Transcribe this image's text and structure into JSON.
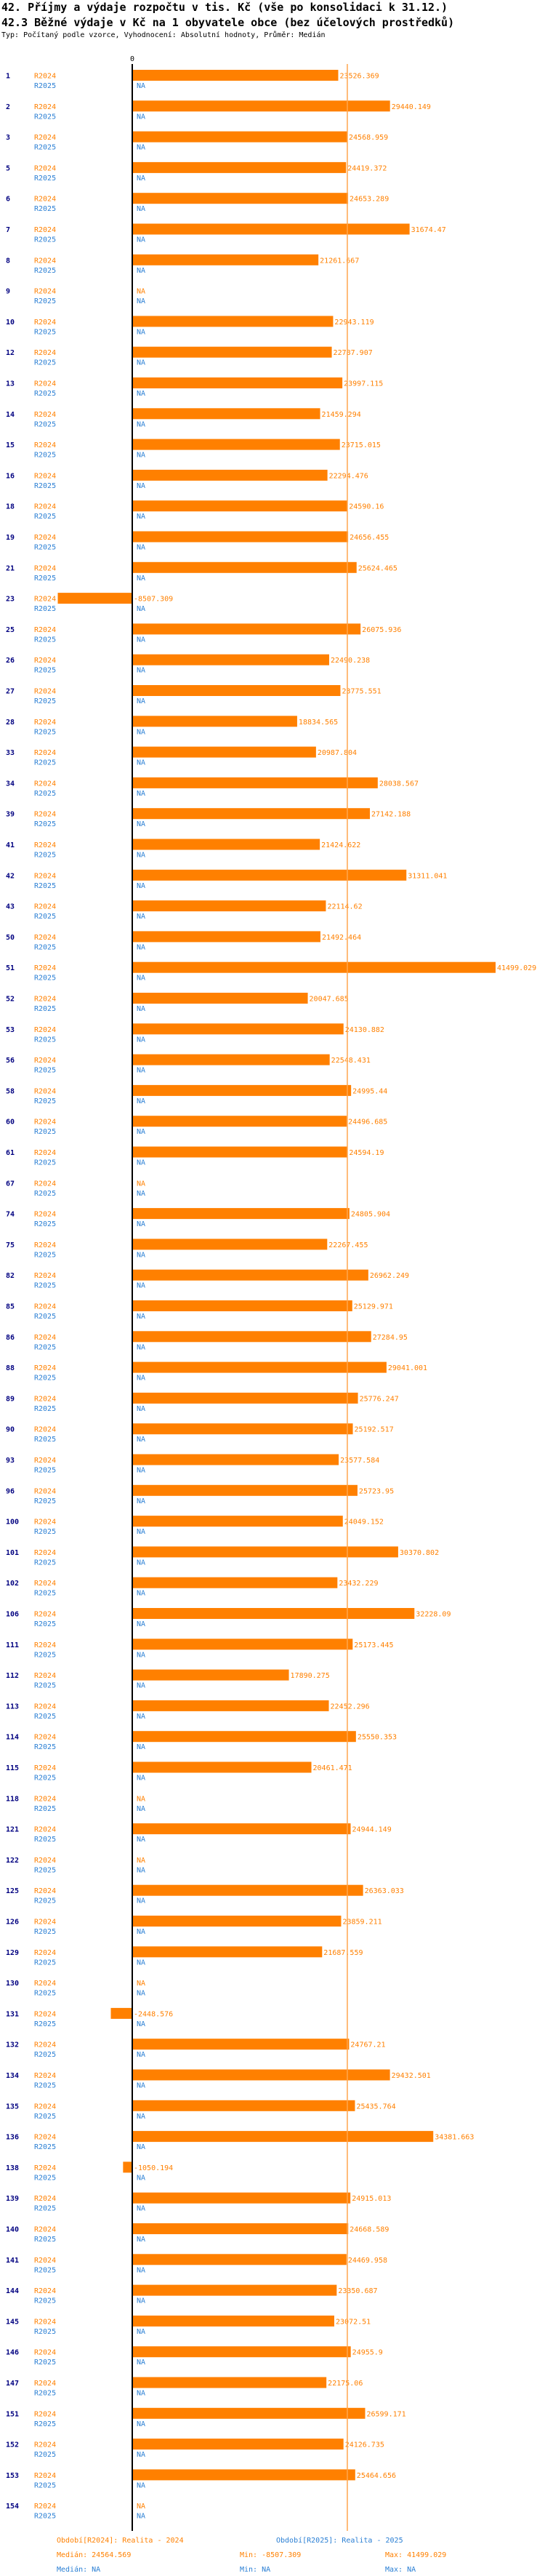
{
  "header": {
    "title_line1": "42. Příjmy a výdaje rozpočtu v tis. Kč (vše po konsolidaci k 31.12.)",
    "title_line2": "42.3 Běžné výdaje v Kč na 1 obyvatele obce (bez účelových prostředků)",
    "subtitle": "Typ: Počítaný podle vzorce, Vyhodnocení: Absolutní hodnoty, Průměr: Medián"
  },
  "chart_data": {
    "type": "bar",
    "orientation": "horizontal",
    "title": "42.3 Běžné výdaje v Kč na 1 obyvatele obce (bez účelových prostředků)",
    "axis_zero_label": "0",
    "xlim": [
      -10000,
      55000
    ],
    "median_value": 24564.569,
    "series_names": [
      "R2024",
      "R2025"
    ],
    "missing_label": "NA",
    "categories": [
      "1",
      "2",
      "3",
      "5",
      "6",
      "7",
      "8",
      "9",
      "10",
      "12",
      "13",
      "14",
      "15",
      "16",
      "18",
      "19",
      "21",
      "23",
      "25",
      "26",
      "27",
      "28",
      "33",
      "34",
      "39",
      "41",
      "42",
      "43",
      "50",
      "51",
      "52",
      "53",
      "56",
      "58",
      "60",
      "61",
      "67",
      "74",
      "75",
      "82",
      "85",
      "86",
      "88",
      "89",
      "90",
      "93",
      "96",
      "100",
      "101",
      "102",
      "106",
      "111",
      "112",
      "113",
      "114",
      "115",
      "118",
      "121",
      "122",
      "125",
      "126",
      "129",
      "130",
      "131",
      "132",
      "134",
      "135",
      "136",
      "138",
      "139",
      "140",
      "141",
      "144",
      "145",
      "146",
      "147",
      "151",
      "152",
      "153",
      "154"
    ],
    "series": [
      {
        "name": "R2024",
        "values": [
          23526.369,
          29440.149,
          24568.959,
          24419.372,
          24653.289,
          31674.47,
          21261.667,
          null,
          22943.119,
          22787.907,
          23997.115,
          21459.294,
          23715.015,
          22294.476,
          24590.16,
          24656.455,
          25624.465,
          -8507.309,
          26075.936,
          22490.238,
          23775.551,
          18834.565,
          20987.804,
          28038.567,
          27142.188,
          21424.622,
          31311.041,
          22114.62,
          21492.464,
          41499.029,
          20047.685,
          24130.882,
          22548.431,
          24995.44,
          24496.685,
          24594.19,
          null,
          24805.904,
          22267.455,
          26962.249,
          25129.971,
          27284.95,
          29041.001,
          25776.247,
          25192.517,
          23577.584,
          25723.95,
          24049.152,
          30370.802,
          23432.229,
          32228.09,
          25173.445,
          17890.275,
          22452.296,
          25550.353,
          20461.471,
          null,
          24944.149,
          null,
          26363.033,
          23859.211,
          21687.559,
          null,
          -2448.576,
          24767.21,
          29432.501,
          25435.764,
          34381.663,
          -1050.194,
          24915.013,
          24668.589,
          24469.958,
          23350.687,
          23072.51,
          24955.9,
          22175.06,
          26599.171,
          24126.735,
          25464.656,
          null
        ]
      },
      {
        "name": "R2025",
        "values": [
          null,
          null,
          null,
          null,
          null,
          null,
          null,
          null,
          null,
          null,
          null,
          null,
          null,
          null,
          null,
          null,
          null,
          null,
          null,
          null,
          null,
          null,
          null,
          null,
          null,
          null,
          null,
          null,
          null,
          null,
          null,
          null,
          null,
          null,
          null,
          null,
          null,
          null,
          null,
          null,
          null,
          null,
          null,
          null,
          null,
          null,
          null,
          null,
          null,
          null,
          null,
          null,
          null,
          null,
          null,
          null,
          null,
          null,
          null,
          null,
          null,
          null,
          null,
          null,
          null,
          null,
          null,
          null,
          null,
          null,
          null,
          null,
          null,
          null,
          null,
          null,
          null,
          null,
          null,
          null
        ]
      }
    ]
  },
  "footer": {
    "col1_line1": "Období[R2024]: Realita - 2024",
    "col1_line2": "Medián: 24564.569",
    "col2_line1": "Období[R2025]: Realita - 2025",
    "col2_line2": "Min: -8507.309",
    "col2_line3": "Min: NA",
    "col3_line2": "Max: 41499.029",
    "col3_line3": "Max: NA",
    "col1_line3": "Medián: NA"
  },
  "colors": {
    "bar": "#ff8000",
    "r2024_label": "#ff8000",
    "r2025_label": "#2a7fd4",
    "category_label": "#000080",
    "axis": "#000000",
    "median_line": "#ffa64d"
  }
}
